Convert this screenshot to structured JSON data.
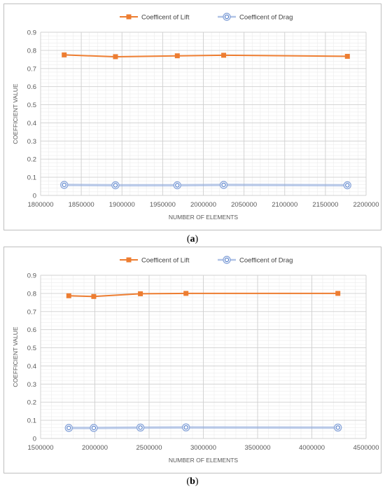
{
  "chart_data": [
    {
      "type": "line",
      "panel_label": "a",
      "xlabel": "NUMBER OF ELEMENTS",
      "ylabel": "COEFFICIENT VALUE",
      "xlim": [
        1800000,
        2200000
      ],
      "ylim": [
        0,
        0.9
      ],
      "x_ticks": [
        1800000,
        1850000,
        1900000,
        1950000,
        2000000,
        2050000,
        2100000,
        2150000,
        2200000
      ],
      "y_ticks": [
        0,
        0.1,
        0.2,
        0.3,
        0.4,
        0.5,
        0.6,
        0.7,
        0.8,
        0.9
      ],
      "x_minor_step": 10000,
      "y_minor_step": 0.02,
      "grid": true,
      "legend_position": "top",
      "series": [
        {
          "name": "Coefficent of Lift",
          "color": "#ed7d31",
          "marker": "square",
          "x": [
            1829000,
            1892000,
            1968000,
            2025000,
            2177000
          ],
          "y": [
            0.775,
            0.765,
            0.77,
            0.773,
            0.767
          ]
        },
        {
          "name": "Coefficent of Drag",
          "color": "#8faadc",
          "marker": "circle",
          "x": [
            1829000,
            1892000,
            1968000,
            2025000,
            2177000
          ],
          "y": [
            0.058,
            0.056,
            0.056,
            0.058,
            0.056
          ]
        }
      ]
    },
    {
      "type": "line",
      "panel_label": "b",
      "xlabel": "NUMBER OF ELEMENTS",
      "ylabel": "COEFFICIENT VALUE",
      "xlim": [
        1500000,
        4500000
      ],
      "ylim": [
        0,
        0.9
      ],
      "x_ticks": [
        1500000,
        2000000,
        2500000,
        3000000,
        3500000,
        4000000,
        4500000
      ],
      "y_ticks": [
        0,
        0.1,
        0.2,
        0.3,
        0.4,
        0.5,
        0.6,
        0.7,
        0.8,
        0.9
      ],
      "x_minor_step": 100000,
      "y_minor_step": 0.02,
      "grid": true,
      "legend_position": "top",
      "series": [
        {
          "name": "Coefficent of Lift",
          "color": "#ed7d31",
          "marker": "square",
          "x": [
            1760000,
            1990000,
            2420000,
            2840000,
            4240000
          ],
          "y": [
            0.787,
            0.783,
            0.798,
            0.8,
            0.8
          ]
        },
        {
          "name": "Coefficent of Drag",
          "color": "#8faadc",
          "marker": "circle",
          "x": [
            1760000,
            1990000,
            2420000,
            2840000,
            4240000
          ],
          "y": [
            0.058,
            0.058,
            0.06,
            0.061,
            0.06
          ]
        }
      ]
    }
  ]
}
